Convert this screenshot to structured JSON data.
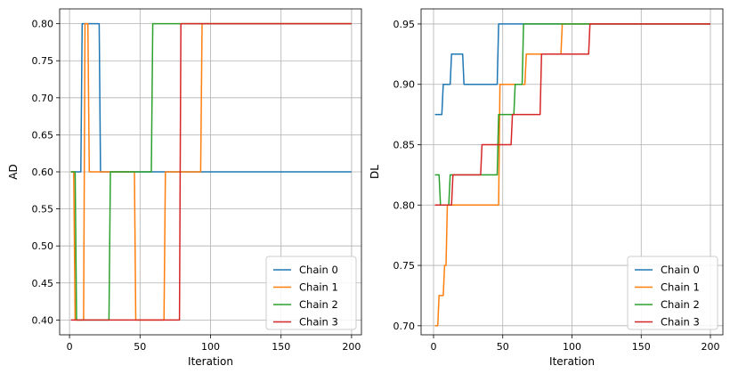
{
  "chart_data": [
    {
      "type": "line",
      "title": "",
      "xlabel": "Iteration",
      "ylabel": "AD",
      "xlim": [
        -7,
        207
      ],
      "ylim": [
        0.38,
        0.82
      ],
      "xticks": [
        0,
        50,
        100,
        150,
        200
      ],
      "xtick_labels": [
        "0",
        "50",
        "100",
        "150",
        "200"
      ],
      "yticks": [
        0.4,
        0.45,
        0.5,
        0.55,
        0.6,
        0.65,
        0.7,
        0.75,
        0.8
      ],
      "ytick_labels": [
        "0.40",
        "0.45",
        "0.50",
        "0.55",
        "0.60",
        "0.65",
        "0.70",
        "0.75",
        "0.80"
      ],
      "grid": true,
      "legend_position": "bottom-right",
      "series": [
        {
          "name": "Chain 0",
          "color": "#1f77b4",
          "x": [
            1,
            8,
            9,
            21,
            22,
            200
          ],
          "y": [
            0.6,
            0.6,
            0.8,
            0.8,
            0.6,
            0.6
          ]
        },
        {
          "name": "Chain 1",
          "color": "#ff7f0e",
          "x": [
            1,
            3,
            4,
            10,
            11,
            13,
            14,
            46,
            47,
            67,
            68,
            93,
            94,
            200
          ],
          "y": [
            0.6,
            0.6,
            0.4,
            0.4,
            0.8,
            0.8,
            0.6,
            0.6,
            0.4,
            0.4,
            0.6,
            0.6,
            0.8,
            0.8
          ]
        },
        {
          "name": "Chain 2",
          "color": "#2ca02c",
          "x": [
            1,
            4,
            5,
            28,
            29,
            58,
            59,
            200
          ],
          "y": [
            0.6,
            0.6,
            0.4,
            0.4,
            0.6,
            0.6,
            0.8,
            0.8
          ]
        },
        {
          "name": "Chain 3",
          "color": "#d62728",
          "x": [
            1,
            78,
            79,
            200
          ],
          "y": [
            0.4,
            0.4,
            0.8,
            0.8
          ]
        }
      ]
    },
    {
      "type": "line",
      "title": "",
      "xlabel": "Iteration",
      "ylabel": "DL",
      "xlim": [
        -9,
        209
      ],
      "ylim": [
        0.6925,
        0.9625
      ],
      "xticks": [
        0,
        50,
        100,
        150,
        200
      ],
      "xtick_labels": [
        "0",
        "50",
        "100",
        "150",
        "200"
      ],
      "yticks": [
        0.7,
        0.75,
        0.8,
        0.85,
        0.9,
        0.95
      ],
      "ytick_labels": [
        "0.70",
        "0.75",
        "0.80",
        "0.85",
        "0.90",
        "0.95"
      ],
      "grid": true,
      "legend_position": "bottom-right",
      "series": [
        {
          "name": "Chain 0",
          "color": "#1f77b4",
          "x": [
            1,
            6,
            7,
            12,
            13,
            21,
            22,
            46,
            47,
            200
          ],
          "y": [
            0.875,
            0.875,
            0.9,
            0.9,
            0.925,
            0.925,
            0.9,
            0.9,
            0.95,
            0.95
          ]
        },
        {
          "name": "Chain 1",
          "color": "#ff7f0e",
          "x": [
            1,
            3,
            4,
            7,
            8,
            9,
            10,
            47,
            48,
            66,
            67,
            92,
            93,
            200
          ],
          "y": [
            0.7,
            0.7,
            0.725,
            0.725,
            0.75,
            0.75,
            0.8,
            0.8,
            0.9,
            0.9,
            0.925,
            0.925,
            0.95,
            0.95
          ]
        },
        {
          "name": "Chain 2",
          "color": "#2ca02c",
          "x": [
            1,
            4,
            5,
            11,
            12,
            28,
            29,
            46,
            47,
            58,
            59,
            64,
            65,
            200
          ],
          "y": [
            0.825,
            0.825,
            0.8,
            0.8,
            0.825,
            0.825,
            0.825,
            0.825,
            0.875,
            0.875,
            0.9,
            0.9,
            0.95,
            0.95
          ]
        },
        {
          "name": "Chain 3",
          "color": "#d62728",
          "x": [
            1,
            13,
            14,
            34,
            35,
            56,
            57,
            77,
            78,
            112,
            113,
            200
          ],
          "y": [
            0.8,
            0.8,
            0.825,
            0.825,
            0.85,
            0.85,
            0.875,
            0.875,
            0.925,
            0.925,
            0.95,
            0.95
          ]
        }
      ]
    }
  ]
}
